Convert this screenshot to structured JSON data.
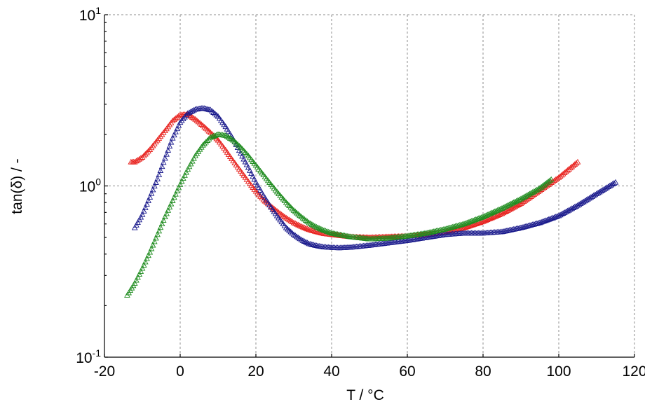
{
  "chart_data": {
    "type": "scatter",
    "title": "",
    "xlabel": "T / °C",
    "ylabel": "tan(δ) / -",
    "xlim": [
      -20,
      120
    ],
    "ylim": [
      0.1,
      10
    ],
    "yscale": "log",
    "grid": true,
    "marker": "triangle",
    "x_ticks": [
      -20,
      0,
      20,
      40,
      60,
      80,
      100,
      120
    ],
    "x_tick_labels": [
      "-20",
      "0",
      "20",
      "40",
      "60",
      "80",
      "100",
      "120"
    ],
    "y_ticks": [
      {
        "value": 0.1,
        "base": "10",
        "exp": "-1"
      },
      {
        "value": 1,
        "base": "10",
        "exp": "0"
      },
      {
        "value": 10,
        "base": "10",
        "exp": "1"
      }
    ],
    "series": [
      {
        "name": "red",
        "color": "#e8231f",
        "x": [
          -13,
          -12,
          -10,
          -8,
          -6,
          -4,
          -2,
          0,
          2,
          4,
          6,
          8,
          10,
          12,
          14,
          16,
          18,
          20,
          22,
          24,
          26,
          28,
          30,
          32,
          34,
          36,
          38,
          40,
          45,
          50,
          55,
          60,
          65,
          70,
          75,
          80,
          85,
          90,
          95,
          100,
          105
        ],
        "y": [
          1.38,
          1.38,
          1.47,
          1.63,
          1.85,
          2.1,
          2.4,
          2.6,
          2.62,
          2.45,
          2.25,
          2.05,
          1.85,
          1.62,
          1.4,
          1.22,
          1.06,
          0.93,
          0.83,
          0.76,
          0.7,
          0.65,
          0.61,
          0.58,
          0.556,
          0.54,
          0.527,
          0.52,
          0.505,
          0.5,
          0.505,
          0.51,
          0.52,
          0.54,
          0.57,
          0.62,
          0.69,
          0.79,
          0.94,
          1.12,
          1.38
        ]
      },
      {
        "name": "blue",
        "color": "#1a1a8c",
        "x": [
          -12,
          -10,
          -8,
          -6,
          -4,
          -2,
          0,
          2,
          4,
          6,
          8,
          10,
          12,
          14,
          16,
          18,
          20,
          22,
          24,
          26,
          28,
          30,
          32,
          34,
          36,
          38,
          40,
          42,
          45,
          50,
          55,
          60,
          65,
          70,
          75,
          80,
          85,
          90,
          95,
          100,
          105,
          110,
          115
        ],
        "y": [
          0.57,
          0.68,
          0.86,
          1.1,
          1.45,
          1.9,
          2.35,
          2.65,
          2.8,
          2.85,
          2.78,
          2.55,
          2.22,
          1.88,
          1.55,
          1.28,
          1.05,
          0.88,
          0.75,
          0.65,
          0.57,
          0.52,
          0.485,
          0.46,
          0.448,
          0.44,
          0.437,
          0.435,
          0.438,
          0.45,
          0.465,
          0.48,
          0.5,
          0.52,
          0.53,
          0.53,
          0.54,
          0.57,
          0.61,
          0.67,
          0.77,
          0.9,
          1.05
        ]
      },
      {
        "name": "green",
        "color": "#1f8c1f",
        "x": [
          -14,
          -12,
          -10,
          -8,
          -6,
          -4,
          -2,
          0,
          2,
          4,
          6,
          8,
          10,
          12,
          14,
          16,
          18,
          20,
          22,
          24,
          26,
          28,
          30,
          32,
          34,
          36,
          38,
          40,
          45,
          50,
          55,
          60,
          65,
          70,
          75,
          80,
          85,
          90,
          95,
          98
        ],
        "y": [
          0.23,
          0.27,
          0.33,
          0.41,
          0.52,
          0.66,
          0.82,
          1.02,
          1.25,
          1.5,
          1.73,
          1.92,
          2.0,
          1.97,
          1.85,
          1.68,
          1.5,
          1.32,
          1.16,
          1.02,
          0.9,
          0.8,
          0.72,
          0.66,
          0.61,
          0.575,
          0.55,
          0.53,
          0.505,
          0.49,
          0.495,
          0.51,
          0.53,
          0.56,
          0.6,
          0.66,
          0.74,
          0.84,
          0.97,
          1.09
        ]
      }
    ]
  }
}
